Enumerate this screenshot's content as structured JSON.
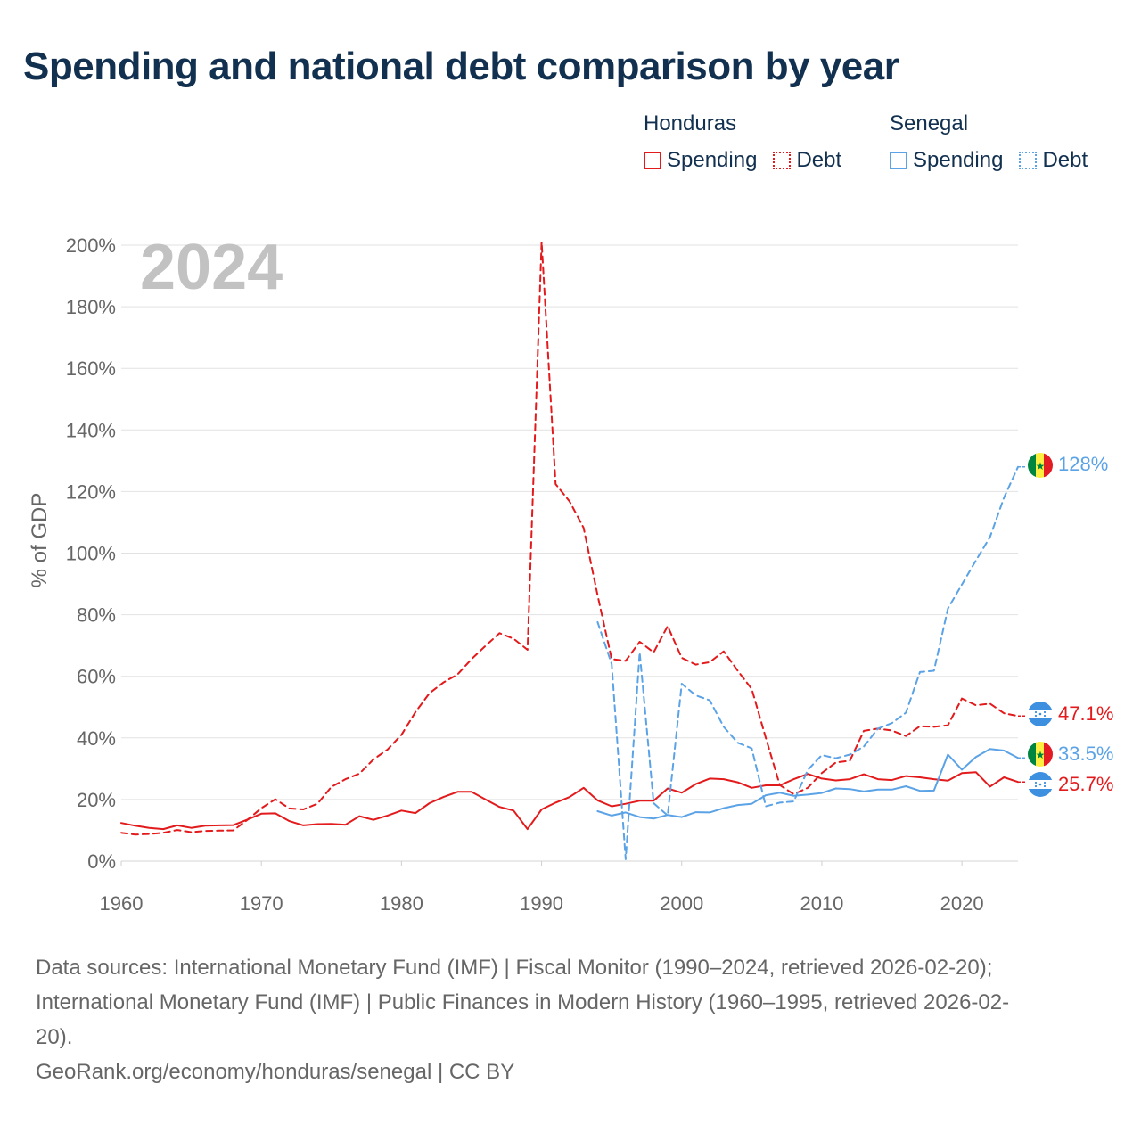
{
  "title": "Spending and national debt comparison by year",
  "colors": {
    "honduras": "#e31a1c",
    "senegal": "#5ba3e6",
    "title": "#12304f",
    "grid": "#e2e2e2",
    "axis_text": "#666666",
    "year_watermark": "#c2c2c2"
  },
  "legend": {
    "groups": [
      {
        "name": "Honduras",
        "items": [
          {
            "label": "Spending",
            "style": "solid"
          },
          {
            "label": "Debt",
            "style": "dashed"
          }
        ]
      },
      {
        "name": "Senegal",
        "items": [
          {
            "label": "Spending",
            "style": "solid"
          },
          {
            "label": "Debt",
            "style": "dashed"
          }
        ]
      }
    ]
  },
  "chart_data": {
    "type": "line",
    "title": "Spending and national debt comparison by year",
    "year_label": "2024",
    "xlabel": "",
    "ylabel": "% of GDP",
    "xlim": [
      1960,
      2024
    ],
    "ylim": [
      0,
      200
    ],
    "x_ticks": [
      1960,
      1970,
      1980,
      1990,
      2000,
      2010,
      2020
    ],
    "y_ticks": [
      0,
      20,
      40,
      60,
      80,
      100,
      120,
      140,
      160,
      180,
      200
    ],
    "y_tick_labels": [
      "0%",
      "20%",
      "40%",
      "60%",
      "80%",
      "100%",
      "120%",
      "140%",
      "160%",
      "180%",
      "200%"
    ],
    "series": [
      {
        "name": "Honduras Spending",
        "country": "Honduras",
        "metric": "Spending",
        "style": "solid",
        "color": "#e31a1c",
        "start_year": 1960,
        "values": [
          12.4,
          11.5,
          10.8,
          10.4,
          11.6,
          10.8,
          11.5,
          11.6,
          11.7,
          13.5,
          15.4,
          15.5,
          13.0,
          11.6,
          12.0,
          12.1,
          11.8,
          14.6,
          13.4,
          14.8,
          16.4,
          15.6,
          18.8,
          20.8,
          22.5,
          22.5,
          20.0,
          17.6,
          16.4,
          10.4,
          16.8,
          19.0,
          20.8,
          23.8,
          19.7,
          17.8,
          18.6,
          19.6,
          19.6,
          23.6,
          22.2,
          25.0,
          26.8,
          26.6,
          25.6,
          23.8,
          24.6,
          24.6,
          26.6,
          28.3,
          26.8,
          26.2,
          26.6,
          28.2,
          26.6,
          26.3,
          27.6,
          27.2,
          26.6,
          26.1,
          28.6,
          28.9,
          24.2,
          27.2,
          25.7
        ],
        "end_label": "25.7%"
      },
      {
        "name": "Honduras Debt",
        "country": "Honduras",
        "metric": "Debt",
        "style": "dashed",
        "color": "#e31a1c",
        "start_year": 1960,
        "values": [
          9.2,
          8.6,
          8.8,
          9.2,
          10.1,
          9.4,
          9.8,
          9.9,
          10.0,
          13.4,
          17.2,
          20.1,
          17.1,
          16.8,
          18.6,
          24.1,
          26.6,
          28.4,
          33.0,
          36.2,
          41.0,
          48.4,
          54.5,
          58.0,
          60.6,
          65.6,
          69.9,
          74.0,
          72.2,
          68.6,
          201.0,
          122.4,
          116.8,
          108.2,
          86.3,
          65.6,
          65.0,
          71.2,
          67.8,
          76.3,
          66.0,
          63.8,
          64.6,
          68.1,
          61.8,
          55.9,
          40.0,
          24.7,
          21.7,
          23.8,
          28.6,
          32.0,
          32.6,
          42.3,
          43.0,
          42.4,
          40.6,
          43.8,
          43.6,
          44.1,
          52.8,
          50.6,
          51.1,
          48.0,
          47.1
        ],
        "end_label": "47.1%"
      },
      {
        "name": "Senegal Spending",
        "country": "Senegal",
        "metric": "Spending",
        "style": "solid",
        "color": "#5ba3e6",
        "start_year": 1994,
        "values": [
          16.2,
          14.8,
          15.8,
          14.3,
          13.8,
          15.0,
          14.3,
          15.9,
          15.8,
          17.2,
          18.2,
          18.6,
          21.4,
          22.2,
          21.2,
          21.6,
          22.1,
          23.6,
          23.4,
          22.6,
          23.2,
          23.2,
          24.3,
          22.8,
          22.9,
          34.6,
          29.7,
          33.8,
          36.4,
          35.9,
          33.5
        ],
        "end_label": "33.5%"
      },
      {
        "name": "Senegal Debt",
        "country": "Senegal",
        "metric": "Debt",
        "style": "dashed",
        "color": "#5ba3e6",
        "start_year": 1994,
        "values": [
          77.6,
          64.0,
          0.6,
          67.8,
          18.8,
          14.8,
          57.6,
          53.8,
          52.2,
          43.6,
          38.4,
          36.6,
          17.8,
          19.0,
          19.4,
          29.6,
          34.4,
          33.4,
          34.6,
          37.2,
          43.0,
          44.8,
          48.2,
          61.4,
          61.8,
          82.0,
          89.8,
          97.6,
          105.2,
          118.0,
          128.0
        ],
        "end_label": "128%"
      }
    ]
  },
  "footer": {
    "source_line1": "Data sources: International Monetary Fund (IMF) | Fiscal Monitor (1990–2024, retrieved 2026-02-20);",
    "source_line2": "International Monetary Fund (IMF) | Public Finances in Modern History (1960–1995, retrieved 2026-02-",
    "source_line3": "20).",
    "credit": "GeoRank.org/economy/honduras/senegal | CC BY"
  }
}
